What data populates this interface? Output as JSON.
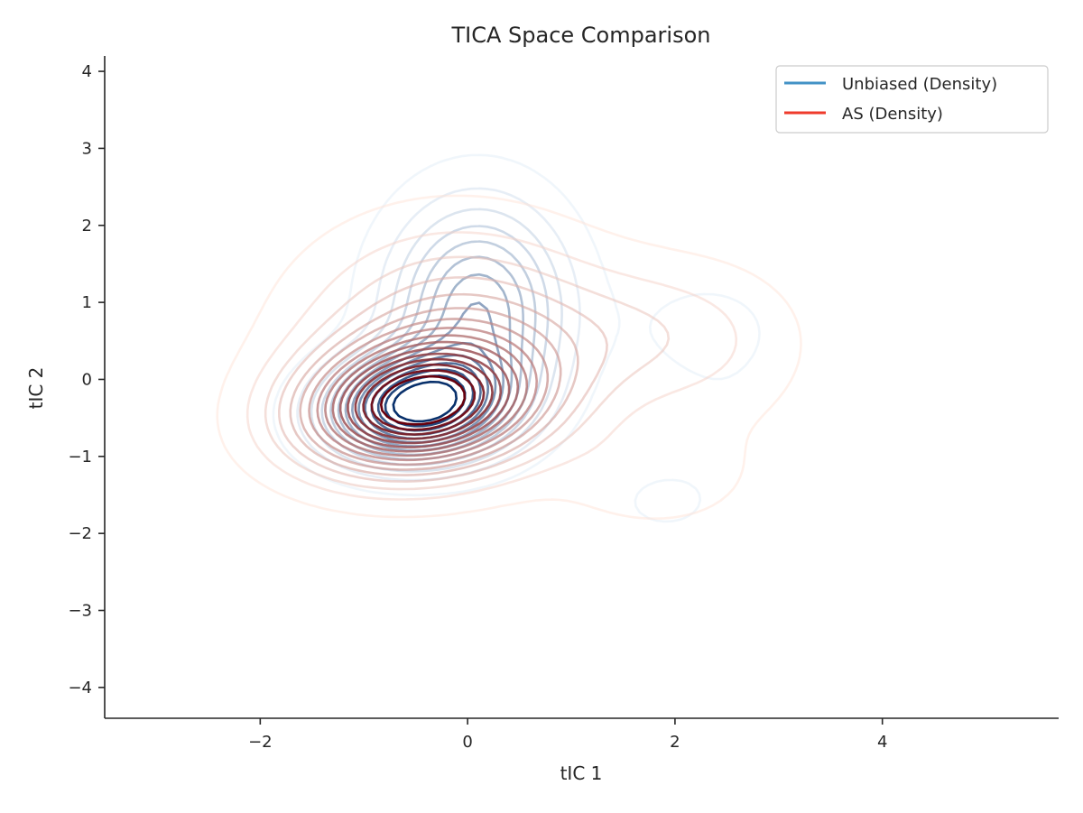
{
  "chart_data": {
    "type": "contour",
    "title": "TICA Space Comparison",
    "xlabel": "tIC 1",
    "ylabel": "tIC 2",
    "xlim": [
      -3.5,
      5.7
    ],
    "ylim": [
      -4.4,
      4.2
    ],
    "xticks": [
      -2,
      0,
      2,
      4
    ],
    "yticks": [
      -4,
      -3,
      -2,
      -1,
      0,
      1,
      2,
      3,
      4
    ],
    "xtick_labels": [
      "−2",
      "0",
      "2",
      "4"
    ],
    "ytick_labels": [
      "−4",
      "−3",
      "−2",
      "−1",
      "0",
      "1",
      "2",
      "3",
      "4"
    ],
    "grid": false,
    "legend_position": "top-right",
    "series": [
      {
        "name": "Unbiased (Density)",
        "color": "#4292c6",
        "colormap": "Blues",
        "levels": 14,
        "components": [
          {
            "mx": -0.5,
            "my": -0.35,
            "sx": 0.55,
            "sy": 0.45,
            "rho": 0.1,
            "w": 1.0
          },
          {
            "mx": 0.1,
            "my": 0.9,
            "sx": 0.55,
            "sy": 0.9,
            "rho": 0.0,
            "w": 0.55
          },
          {
            "mx": 2.3,
            "my": 0.7,
            "sx": 0.55,
            "sy": 0.5,
            "rho": 0.0,
            "w": 0.06
          },
          {
            "mx": 1.9,
            "my": -1.6,
            "sx": 0.35,
            "sy": 0.3,
            "rho": 0.0,
            "w": 0.06
          },
          {
            "mx": 2.5,
            "my": -0.5,
            "sx": 0.5,
            "sy": 0.7,
            "rho": 0.0,
            "w": 0.03
          }
        ]
      },
      {
        "name": "AS (Density)",
        "color": "#ef3b2c",
        "colormap": "Reds",
        "levels": 16,
        "components": [
          {
            "mx": -0.5,
            "my": -0.35,
            "sx": 0.75,
            "sy": 0.55,
            "rho": 0.15,
            "w": 1.0
          },
          {
            "mx": -0.1,
            "my": 0.5,
            "sx": 0.95,
            "sy": 0.95,
            "rho": 0.0,
            "w": 0.35
          },
          {
            "mx": 1.7,
            "my": 0.6,
            "sx": 0.8,
            "sy": 0.6,
            "rho": 0.0,
            "w": 0.12
          },
          {
            "mx": 1.8,
            "my": -1.3,
            "sx": 0.6,
            "sy": 0.45,
            "rho": 0.0,
            "w": 0.08
          },
          {
            "mx": 2.5,
            "my": 0.2,
            "sx": 0.7,
            "sy": 1.0,
            "rho": 0.0,
            "w": 0.05
          }
        ]
      }
    ]
  }
}
